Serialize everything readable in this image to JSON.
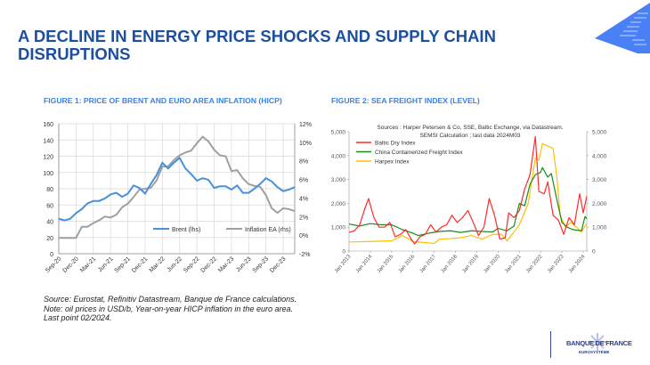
{
  "title": "A DECLINE IN ENERGY PRICE SHOCKS AND SUPPLY CHAIN DISRUPTIONS",
  "note": [
    "Source: Eurostat, Refinitiv Datastream, Banque de France calculations.",
    "Note: oil prices in USD/b, Year-on-year HICP inflation in the euro area.",
    "Last point 02/2024."
  ],
  "logo": {
    "name": "BANQUE DE FRANCE",
    "sub": "EUROSYSTÈME",
    "color": "#2b3f8f"
  },
  "colors": {
    "title": "#1d4f9f",
    "figure_title": "#3a80e0",
    "accent": "#3f7ef0"
  },
  "chart_data": [
    {
      "type": "line",
      "title": "FIGURE 1: PRICE OF BRENT AND EURO AREA INFLATION (HICP)",
      "ylim": [
        0,
        160
      ],
      "yticks": [
        "0",
        "20",
        "40",
        "60",
        "80",
        "100",
        "120",
        "140",
        "160"
      ],
      "y2lim": [
        -2,
        12
      ],
      "y2ticks": [
        "-2%",
        "0%",
        "2%",
        "4%",
        "6%",
        "8%",
        "10%",
        "12%"
      ],
      "grid": true,
      "legend": "bottom-right",
      "xticks": [
        "Sep-20",
        "Dec-20",
        "Mar-21",
        "Jun-21",
        "Sep-21",
        "Dec-21",
        "Mar-22",
        "Jun-22",
        "Sep-22",
        "Dec-22",
        "Mar-23",
        "Jun-23",
        "Sep-23",
        "Dec-23"
      ],
      "x_start": "2020-09",
      "x_end": "2024-02",
      "series": [
        {
          "name": "Brent (lhs)",
          "axis": "left",
          "color": "#4a90d9",
          "values": [
            43,
            41,
            43,
            50,
            55,
            62,
            65,
            65,
            68,
            73,
            75,
            70,
            74,
            84,
            81,
            74,
            86,
            97,
            112,
            105,
            112,
            118,
            105,
            98,
            90,
            93,
            91,
            81,
            83,
            83,
            79,
            84,
            75,
            75,
            80,
            86,
            93,
            89,
            82,
            77,
            79,
            82
          ]
        },
        {
          "name": "Inflation EA (rhs)",
          "axis": "right",
          "color": "#a0a0a0",
          "values": [
            -0.3,
            -0.3,
            -0.3,
            -0.3,
            0.9,
            0.9,
            1.3,
            1.6,
            2.0,
            1.9,
            2.2,
            3.0,
            3.4,
            4.1,
            4.9,
            5.0,
            5.1,
            5.9,
            7.4,
            7.4,
            8.1,
            8.6,
            8.9,
            9.1,
            9.9,
            10.6,
            10.1,
            9.2,
            8.6,
            8.5,
            6.9,
            7.0,
            6.1,
            5.5,
            5.3,
            5.2,
            4.3,
            2.9,
            2.4,
            2.9,
            2.8,
            2.6
          ]
        }
      ]
    },
    {
      "type": "line",
      "title": "FIGURE 2: SEA FREIGHT INDEX (LEVEL)",
      "subtitle": [
        "Sources : Harper Petersen & Co, SSE, Baltic Exchange, via Datastream.",
        "SEMSI Calculation ; last data 2024M03"
      ],
      "ylim": [
        0,
        5000
      ],
      "yticks": [
        "0",
        "1,000",
        "2,000",
        "3,000",
        "4,000",
        "5,000"
      ],
      "y2ticks": [
        "0",
        "1,000",
        "2,000",
        "3,000",
        "4,000",
        "5,000"
      ],
      "grid": false,
      "legend": "top-left",
      "xticks": [
        "Jan 2013",
        "Jan 2014",
        "Jan 2015",
        "Jan 2016",
        "Jan 2017",
        "Jan 2018",
        "Jan 2019",
        "Jan 2020",
        "Jan 2021",
        "Jan 2022",
        "Jan 2023",
        "Jan 2024"
      ],
      "x_start": "2013-01",
      "x_end": "2024-03",
      "series": [
        {
          "name": "Baltic Dry Index",
          "color": "#ff2a2a",
          "points": [
            [
              "2013-01",
              780
            ],
            [
              "2013-04",
              850
            ],
            [
              "2013-07",
              1100
            ],
            [
              "2013-10",
              1800
            ],
            [
              "2013-12",
              2200
            ],
            [
              "2014-03",
              1400
            ],
            [
              "2014-06",
              1000
            ],
            [
              "2014-09",
              1000
            ],
            [
              "2014-12",
              1200
            ],
            [
              "2015-03",
              600
            ],
            [
              "2015-06",
              700
            ],
            [
              "2015-09",
              900
            ],
            [
              "2015-12",
              500
            ],
            [
              "2016-02",
              300
            ],
            [
              "2016-05",
              600
            ],
            [
              "2016-08",
              700
            ],
            [
              "2016-11",
              1100
            ],
            [
              "2017-02",
              800
            ],
            [
              "2017-05",
              1000
            ],
            [
              "2017-08",
              1100
            ],
            [
              "2017-11",
              1500
            ],
            [
              "2018-02",
              1200
            ],
            [
              "2018-05",
              1400
            ],
            [
              "2018-08",
              1700
            ],
            [
              "2018-11",
              1200
            ],
            [
              "2019-02",
              650
            ],
            [
              "2019-05",
              1000
            ],
            [
              "2019-08",
              2200
            ],
            [
              "2019-11",
              1500
            ],
            [
              "2020-02",
              500
            ],
            [
              "2020-05",
              550
            ],
            [
              "2020-07",
              1600
            ],
            [
              "2020-10",
              1400
            ],
            [
              "2021-01",
              1700
            ],
            [
              "2021-04",
              2600
            ],
            [
              "2021-07",
              3200
            ],
            [
              "2021-10",
              4800
            ],
            [
              "2021-12",
              2500
            ],
            [
              "2022-03",
              2400
            ],
            [
              "2022-05",
              2900
            ],
            [
              "2022-08",
              1500
            ],
            [
              "2022-11",
              1300
            ],
            [
              "2023-02",
              700
            ],
            [
              "2023-05",
              1400
            ],
            [
              "2023-08",
              1100
            ],
            [
              "2023-11",
              2400
            ],
            [
              "2024-01",
              1600
            ],
            [
              "2024-03",
              2300
            ]
          ]
        },
        {
          "name": "China Containerized Freight Index",
          "color": "#1a8a1a",
          "points": [
            [
              "2013-01",
              1130
            ],
            [
              "2013-07",
              1050
            ],
            [
              "2014-01",
              1150
            ],
            [
              "2014-07",
              1100
            ],
            [
              "2015-01",
              1100
            ],
            [
              "2015-07",
              900
            ],
            [
              "2016-01",
              750
            ],
            [
              "2016-04",
              650
            ],
            [
              "2016-10",
              750
            ],
            [
              "2017-04",
              820
            ],
            [
              "2017-10",
              850
            ],
            [
              "2018-04",
              780
            ],
            [
              "2018-10",
              850
            ],
            [
              "2019-04",
              820
            ],
            [
              "2019-10",
              800
            ],
            [
              "2020-01",
              950
            ],
            [
              "2020-06",
              850
            ],
            [
              "2020-10",
              1050
            ],
            [
              "2021-01",
              2000
            ],
            [
              "2021-04",
              1900
            ],
            [
              "2021-07",
              2800
            ],
            [
              "2021-10",
              3200
            ],
            [
              "2022-01",
              3300
            ],
            [
              "2022-02",
              3500
            ],
            [
              "2022-05",
              3100
            ],
            [
              "2022-07",
              3250
            ],
            [
              "2022-10",
              2200
            ],
            [
              "2023-01",
              1200
            ],
            [
              "2023-04",
              1000
            ],
            [
              "2023-07",
              900
            ],
            [
              "2023-12",
              850
            ],
            [
              "2024-02",
              1450
            ],
            [
              "2024-03",
              1350
            ]
          ]
        },
        {
          "name": "Harpex Index",
          "color": "#ffc000",
          "points": [
            [
              "2013-01",
              380
            ],
            [
              "2014-01",
              400
            ],
            [
              "2015-01",
              430
            ],
            [
              "2015-07",
              650
            ],
            [
              "2016-01",
              400
            ],
            [
              "2016-07",
              360
            ],
            [
              "2017-01",
              320
            ],
            [
              "2017-04",
              500
            ],
            [
              "2017-10",
              520
            ],
            [
              "2018-04",
              560
            ],
            [
              "2018-10",
              650
            ],
            [
              "2019-04",
              500
            ],
            [
              "2019-10",
              700
            ],
            [
              "2020-03",
              700
            ],
            [
              "2020-06",
              430
            ],
            [
              "2020-10",
              800
            ],
            [
              "2021-01",
              1100
            ],
            [
              "2021-06",
              2000
            ],
            [
              "2021-10",
              3900
            ],
            [
              "2021-12",
              3800
            ],
            [
              "2022-02",
              4500
            ],
            [
              "2022-05",
              4400
            ],
            [
              "2022-08",
              4300
            ],
            [
              "2022-10",
              3200
            ],
            [
              "2022-12",
              1500
            ],
            [
              "2023-03",
              1000
            ],
            [
              "2023-06",
              1200
            ],
            [
              "2023-10",
              950
            ],
            [
              "2023-12",
              800
            ],
            [
              "2024-03",
              1150
            ]
          ]
        }
      ]
    }
  ]
}
